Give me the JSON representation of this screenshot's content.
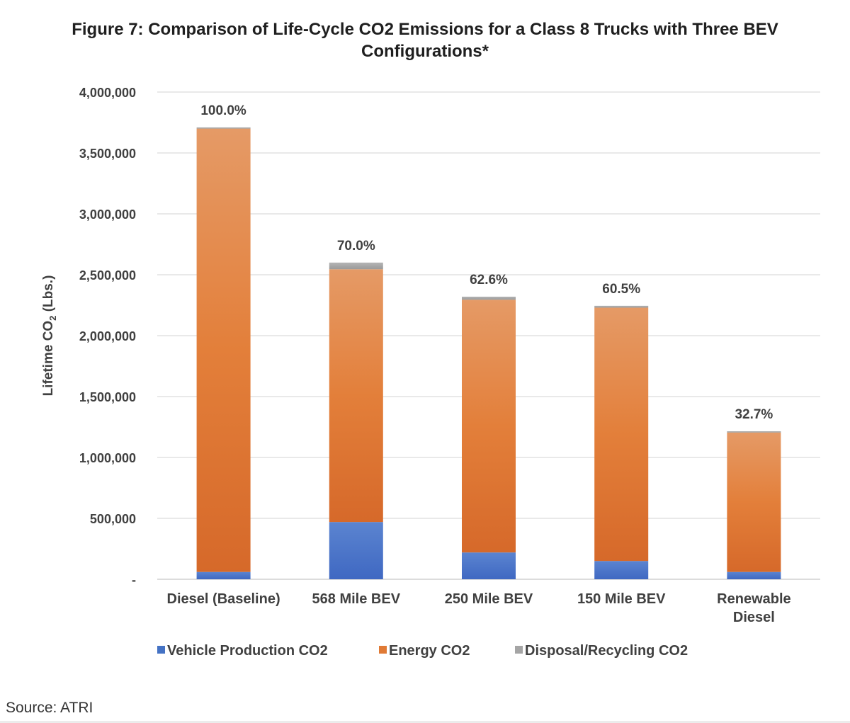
{
  "figure": {
    "title_line1": "Figure 7:  Comparison of Life-Cycle CO2 Emissions for a Class 8 Trucks with Three BEV",
    "title_line2": "Configurations*",
    "source": "Source: ATRI"
  },
  "chart_data": {
    "type": "bar",
    "stacked": true,
    "title": "Figure 7:  Comparison of Life-Cycle CO2 Emissions for a Class 8 Trucks with Three BEV Configurations*",
    "ylabel": "Lifetime CO2 (Lbs.)",
    "ylabel_main": "Lifetime CO",
    "ylabel_sub": "2",
    "ylabel_tail": " (Lbs.)",
    "ylim": [
      0,
      4000000
    ],
    "yticks": [
      0,
      500000,
      1000000,
      1500000,
      2000000,
      2500000,
      3000000,
      3500000,
      4000000
    ],
    "ytick_labels": [
      "-",
      "500,000",
      "1,000,000",
      "1,500,000",
      "2,000,000",
      "2,500,000",
      "3,000,000",
      "3,500,000",
      "4,000,000"
    ],
    "grid": true,
    "legend_position": "bottom",
    "categories": [
      [
        "Diesel (Baseline)"
      ],
      [
        "568 Mile BEV"
      ],
      [
        "250 Mile BEV"
      ],
      [
        "150 Mile BEV"
      ],
      [
        "Renewable",
        "Diesel"
      ]
    ],
    "series": [
      {
        "name": "Vehicle Production CO2",
        "color": "#4472c4",
        "values": [
          60000,
          470000,
          220000,
          150000,
          60000
        ]
      },
      {
        "name": "Energy  CO2",
        "color": "#e07a35",
        "values": [
          3640000,
          2075000,
          2075000,
          2080000,
          1145000
        ]
      },
      {
        "name": "Disposal/Recycling CO2",
        "color": "#a5a5a5",
        "values": [
          10000,
          55000,
          25000,
          15000,
          10000
        ]
      }
    ],
    "data_labels": [
      "100.0%",
      "70.0%",
      "62.6%",
      "60.5%",
      "32.7%"
    ]
  }
}
